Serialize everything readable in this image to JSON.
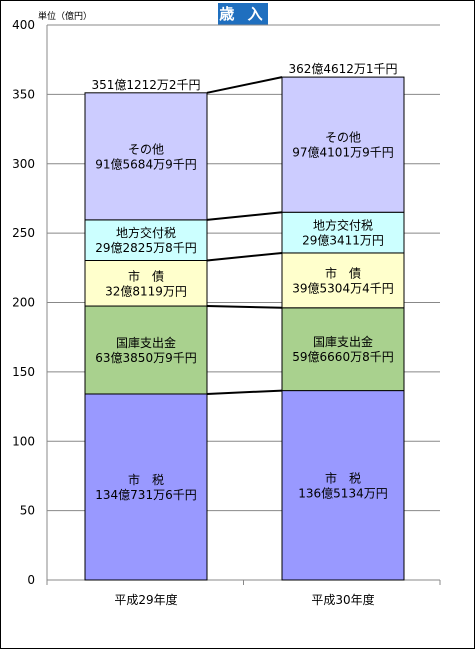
{
  "title": "歳 入",
  "unit": "単位（億円）",
  "chart_data": {
    "type": "bar",
    "stacked": true,
    "categories": [
      "平成29年度",
      "平成30年度"
    ],
    "ylim": [
      0,
      400
    ],
    "yticks": [
      0,
      50,
      100,
      150,
      200,
      250,
      300,
      350,
      400
    ],
    "grid": true,
    "totals": [
      351.1212,
      362.4612
    ],
    "total_labels": [
      "351億1212万2千円",
      "362億4612万1千円"
    ],
    "series": [
      {
        "name": "市　税",
        "color": "#9999ff",
        "values": [
          134.0731,
          136.5134
        ],
        "labels": [
          "134億731万6千円",
          "136億5134万円"
        ]
      },
      {
        "name": "国庫支出金",
        "color": "#a9d18e",
        "values": [
          63.385,
          59.666
        ],
        "labels": [
          "63億3850万9千円",
          "59億6660万8千円"
        ]
      },
      {
        "name": "市　債",
        "color": "#ffffcc",
        "values": [
          32.8119,
          39.5304
        ],
        "labels": [
          "32億8119万円",
          "39億5304万4千円"
        ]
      },
      {
        "name": "地方交付税",
        "color": "#ccffff",
        "values": [
          29.2825,
          29.3411
        ],
        "labels": [
          "29億2825万8千円",
          "29億3411万円"
        ]
      },
      {
        "name": "その他",
        "color": "#ccccff",
        "values": [
          91.5684,
          97.4101
        ],
        "labels": [
          "91億5684万9千円",
          "97億4101万9千円"
        ]
      }
    ]
  }
}
